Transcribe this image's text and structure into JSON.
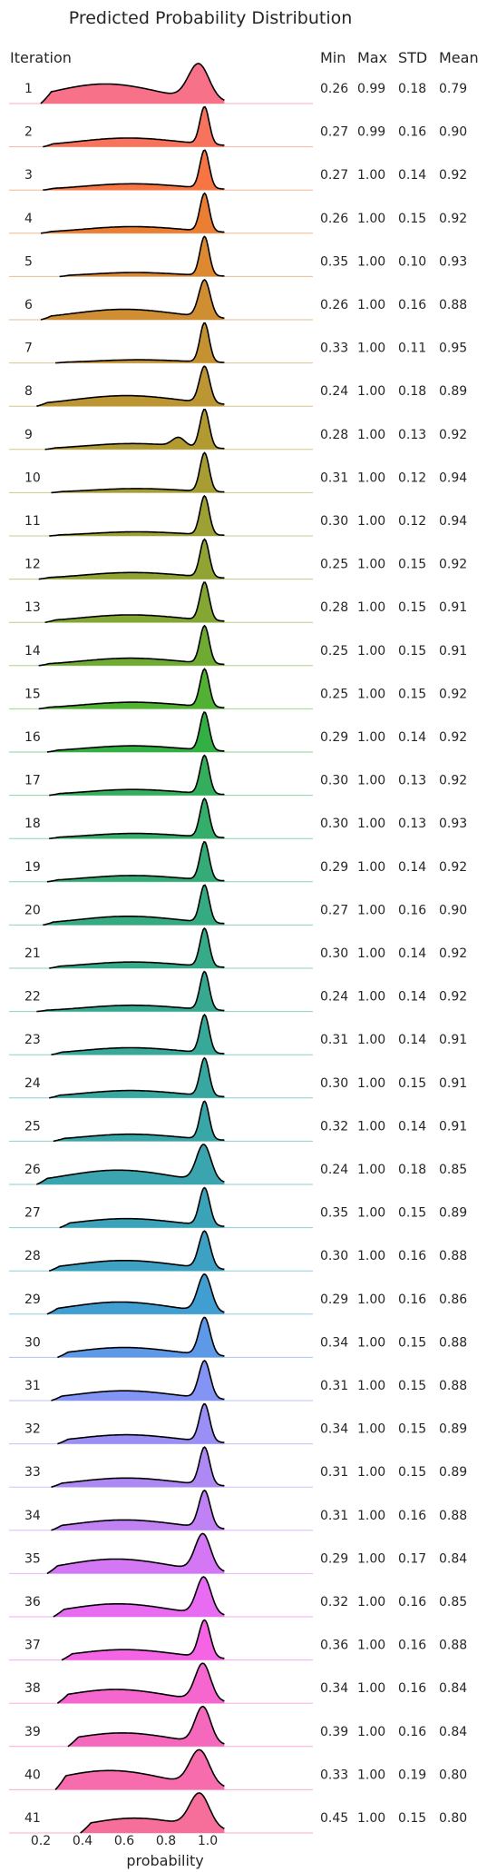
{
  "chart_data": {
    "type": "area",
    "title": "Predicted Probability Distribution",
    "xlabel": "probability",
    "xlim": [
      0.1,
      1.2
    ],
    "x_ticks": [
      0.2,
      0.4,
      0.6,
      0.8,
      1.0
    ],
    "x_tick_labels": [
      "0.2",
      "0.4",
      "0.6",
      "0.8",
      "1.0"
    ],
    "columns": {
      "iteration": "Iteration",
      "min": "Min",
      "max": "Max",
      "std": "STD",
      "mean": "Mean"
    },
    "rows": [
      {
        "iteration": "1",
        "min": "0.26",
        "max": "0.99",
        "std": "0.18",
        "mean": "0.79",
        "color": "#f77189"
      },
      {
        "iteration": "2",
        "min": "0.27",
        "max": "0.99",
        "std": "0.16",
        "mean": "0.90",
        "color": "#f7735e"
      },
      {
        "iteration": "3",
        "min": "0.27",
        "max": "1.00",
        "std": "0.14",
        "mean": "0.92",
        "color": "#f67542"
      },
      {
        "iteration": "4",
        "min": "0.26",
        "max": "1.00",
        "std": "0.15",
        "mean": "0.92",
        "color": "#ea7e32"
      },
      {
        "iteration": "5",
        "min": "0.35",
        "max": "1.00",
        "std": "0.10",
        "mean": "0.93",
        "color": "#dc8932"
      },
      {
        "iteration": "6",
        "min": "0.26",
        "max": "1.00",
        "std": "0.16",
        "mean": "0.88",
        "color": "#d08e32"
      },
      {
        "iteration": "7",
        "min": "0.33",
        "max": "1.00",
        "std": "0.11",
        "mean": "0.95",
        "color": "#c59232"
      },
      {
        "iteration": "8",
        "min": "0.24",
        "max": "1.00",
        "std": "0.18",
        "mean": "0.89",
        "color": "#bb9632"
      },
      {
        "iteration": "9",
        "min": "0.28",
        "max": "1.00",
        "std": "0.13",
        "mean": "0.92",
        "color": "#b19a32"
      },
      {
        "iteration": "10",
        "min": "0.31",
        "max": "1.00",
        "std": "0.12",
        "mean": "0.94",
        "color": "#a79d32"
      },
      {
        "iteration": "11",
        "min": "0.30",
        "max": "1.00",
        "std": "0.12",
        "mean": "0.94",
        "color": "#9da032"
      },
      {
        "iteration": "12",
        "min": "0.25",
        "max": "1.00",
        "std": "0.15",
        "mean": "0.92",
        "color": "#91a332"
      },
      {
        "iteration": "13",
        "min": "0.28",
        "max": "1.00",
        "std": "0.15",
        "mean": "0.91",
        "color": "#83a732"
      },
      {
        "iteration": "14",
        "min": "0.25",
        "max": "1.00",
        "std": "0.15",
        "mean": "0.91",
        "color": "#6fab32"
      },
      {
        "iteration": "15",
        "min": "0.25",
        "max": "1.00",
        "std": "0.15",
        "mean": "0.92",
        "color": "#50b132"
      },
      {
        "iteration": "16",
        "min": "0.29",
        "max": "1.00",
        "std": "0.14",
        "mean": "0.92",
        "color": "#33b044"
      },
      {
        "iteration": "17",
        "min": "0.30",
        "max": "1.00",
        "std": "0.13",
        "mean": "0.92",
        "color": "#34ae5c"
      },
      {
        "iteration": "18",
        "min": "0.30",
        "max": "1.00",
        "std": "0.13",
        "mean": "0.93",
        "color": "#35ad6b"
      },
      {
        "iteration": "19",
        "min": "0.29",
        "max": "1.00",
        "std": "0.14",
        "mean": "0.92",
        "color": "#35ac77"
      },
      {
        "iteration": "20",
        "min": "0.27",
        "max": "1.00",
        "std": "0.16",
        "mean": "0.90",
        "color": "#36ab81"
      },
      {
        "iteration": "21",
        "min": "0.30",
        "max": "1.00",
        "std": "0.14",
        "mean": "0.92",
        "color": "#36aa89"
      },
      {
        "iteration": "22",
        "min": "0.24",
        "max": "1.00",
        "std": "0.14",
        "mean": "0.92",
        "color": "#37a991"
      },
      {
        "iteration": "23",
        "min": "0.31",
        "max": "1.00",
        "std": "0.14",
        "mean": "0.91",
        "color": "#38a898"
      },
      {
        "iteration": "24",
        "min": "0.30",
        "max": "1.00",
        "std": "0.15",
        "mean": "0.91",
        "color": "#38a79f"
      },
      {
        "iteration": "25",
        "min": "0.32",
        "max": "1.00",
        "std": "0.14",
        "mean": "0.91",
        "color": "#39a6a7"
      },
      {
        "iteration": "26",
        "min": "0.24",
        "max": "1.00",
        "std": "0.18",
        "mean": "0.85",
        "color": "#3aa5af"
      },
      {
        "iteration": "27",
        "min": "0.35",
        "max": "1.00",
        "std": "0.15",
        "mean": "0.89",
        "color": "#3ba3b8"
      },
      {
        "iteration": "28",
        "min": "0.30",
        "max": "1.00",
        "std": "0.16",
        "mean": "0.88",
        "color": "#3da1c3"
      },
      {
        "iteration": "29",
        "min": "0.29",
        "max": "1.00",
        "std": "0.16",
        "mean": "0.86",
        "color": "#409ed1"
      },
      {
        "iteration": "30",
        "min": "0.34",
        "max": "1.00",
        "std": "0.15",
        "mean": "0.88",
        "color": "#5e99e8"
      },
      {
        "iteration": "31",
        "min": "0.31",
        "max": "1.00",
        "std": "0.15",
        "mean": "0.88",
        "color": "#8394f4"
      },
      {
        "iteration": "32",
        "min": "0.34",
        "max": "1.00",
        "std": "0.15",
        "mean": "0.89",
        "color": "#9a8ff4"
      },
      {
        "iteration": "33",
        "min": "0.31",
        "max": "1.00",
        "std": "0.15",
        "mean": "0.89",
        "color": "#ae89f4"
      },
      {
        "iteration": "34",
        "min": "0.31",
        "max": "1.00",
        "std": "0.16",
        "mean": "0.88",
        "color": "#c081f4"
      },
      {
        "iteration": "35",
        "min": "0.29",
        "max": "1.00",
        "std": "0.17",
        "mean": "0.84",
        "color": "#d377f4"
      },
      {
        "iteration": "36",
        "min": "0.32",
        "max": "1.00",
        "std": "0.16",
        "mean": "0.85",
        "color": "#e76cf2"
      },
      {
        "iteration": "37",
        "min": "0.36",
        "max": "1.00",
        "std": "0.16",
        "mean": "0.88",
        "color": "#f464e4"
      },
      {
        "iteration": "38",
        "min": "0.34",
        "max": "1.00",
        "std": "0.16",
        "mean": "0.84",
        "color": "#f566cf"
      },
      {
        "iteration": "39",
        "min": "0.39",
        "max": "1.00",
        "std": "0.16",
        "mean": "0.84",
        "color": "#f569bd"
      },
      {
        "iteration": "40",
        "min": "0.33",
        "max": "1.00",
        "std": "0.19",
        "mean": "0.80",
        "color": "#f66cac"
      },
      {
        "iteration": "41",
        "min": "0.45",
        "max": "1.00",
        "std": "0.15",
        "mean": "0.80",
        "color": "#f66f9b"
      }
    ]
  }
}
